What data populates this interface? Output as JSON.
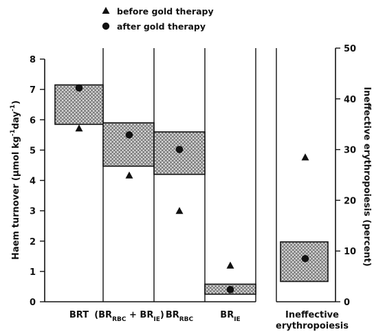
{
  "chart_data": {
    "type": "range-box",
    "legend": [
      {
        "marker": "triangle",
        "label": "before gold therapy"
      },
      {
        "marker": "circle",
        "label": "after gold therapy"
      }
    ],
    "y_left": {
      "label": "Haem turnover (μmol kg⁻¹day⁻¹)",
      "label_parts": {
        "main": "Haem turnover (μmol kg",
        "exp1": "-1",
        "mid": "day",
        "exp2": "-1",
        "end": ")"
      },
      "range": [
        0,
        8
      ],
      "ticks": [
        "0",
        "1",
        "2",
        "3",
        "4",
        "5",
        "6",
        "7",
        "8"
      ]
    },
    "y_right": {
      "label": "Ineffective erythropoiesis (percent)",
      "range": [
        0,
        50
      ],
      "ticks": [
        "0",
        "10",
        "20",
        "30",
        "40",
        "50"
      ]
    },
    "categories": [
      {
        "label": "BRT",
        "axis": "left",
        "box": [
          5.85,
          7.15
        ],
        "before": 5.72,
        "after": 7.05
      },
      {
        "label": "(BR_RBC + BR_IE)",
        "label_parts": {
          "open": "(BR",
          "sub1": "RBC",
          "plus": " + BR",
          "sub2": "IE",
          "close": ")"
        },
        "axis": "left",
        "box": [
          4.47,
          5.9
        ],
        "before": 4.17,
        "after": 5.5
      },
      {
        "label": "BR_RBC",
        "label_parts": {
          "main": "BR",
          "sub": "RBC"
        },
        "axis": "left",
        "box": [
          4.2,
          5.6
        ],
        "before": 3.0,
        "after": 5.02
      },
      {
        "label": "BR_IE",
        "label_parts": {
          "main": "BR",
          "sub": "IE"
        },
        "axis": "left",
        "box": [
          0.25,
          0.58
        ],
        "before": 1.2,
        "after": 0.4
      },
      {
        "label": "Ineffective erythropoiesis",
        "label_lines": [
          "Ineffective",
          "erythropoiesis"
        ],
        "axis": "right",
        "box": [
          4.0,
          11.8
        ],
        "before": 28.5,
        "after": 8.5
      }
    ]
  }
}
